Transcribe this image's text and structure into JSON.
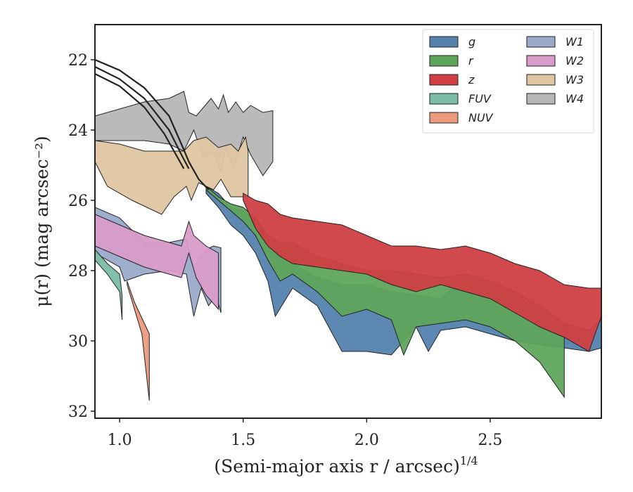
{
  "chart_data": {
    "type": "area",
    "title": "",
    "xlabel": "(Semi-major axis r / arcsec)",
    "xlabel_superscript": "1/4",
    "ylabel": "μ(r) (mag arcsec⁻²)",
    "xlim": [
      0.9,
      2.95
    ],
    "ylim": [
      32.2,
      21.0
    ],
    "y_inverted": true,
    "x_ticks": [
      1.0,
      1.5,
      2.0,
      2.5
    ],
    "x_tick_labels": [
      "1.0",
      "1.5",
      "2.0",
      "2.5"
    ],
    "y_ticks": [
      22,
      24,
      26,
      28,
      30,
      32
    ],
    "y_tick_labels": [
      "22",
      "24",
      "26",
      "28",
      "30",
      "32"
    ],
    "grid": false,
    "legend": {
      "placement": "top-right",
      "columns": 2,
      "entries": [
        "g",
        "r",
        "z",
        "FUV",
        "NUV",
        "W1",
        "W2",
        "W3",
        "W4"
      ]
    },
    "series": [
      {
        "name": "W4",
        "color": "#b6b6b6",
        "upper": [
          [
            0.9,
            23.6
          ],
          [
            1.1,
            23.2
          ],
          [
            1.2,
            23.1
          ],
          [
            1.26,
            22.9
          ],
          [
            1.28,
            23.5
          ],
          [
            1.31,
            23.6
          ],
          [
            1.37,
            23.1
          ],
          [
            1.4,
            23.4
          ],
          [
            1.42,
            23.0
          ],
          [
            1.44,
            23.5
          ],
          [
            1.47,
            23.2
          ],
          [
            1.5,
            23.5
          ],
          [
            1.53,
            23.3
          ],
          [
            1.58,
            23.5
          ],
          [
            1.62,
            23.45
          ]
        ],
        "lower": [
          [
            0.9,
            24.3
          ],
          [
            1.1,
            24.3
          ],
          [
            1.2,
            24.4
          ],
          [
            1.26,
            24.6
          ],
          [
            1.3,
            24.0
          ],
          [
            1.34,
            24.8
          ],
          [
            1.38,
            24.6
          ],
          [
            1.41,
            25.2
          ],
          [
            1.43,
            24.5
          ],
          [
            1.46,
            25.1
          ],
          [
            1.5,
            24.2
          ],
          [
            1.53,
            24.7
          ],
          [
            1.58,
            25.3
          ],
          [
            1.62,
            24.9
          ]
        ]
      },
      {
        "name": "W3",
        "color": "#dfc6a3",
        "upper": [
          [
            0.9,
            24.3
          ],
          [
            1.0,
            24.4
          ],
          [
            1.1,
            24.6
          ],
          [
            1.2,
            24.6
          ],
          [
            1.26,
            24.6
          ],
          [
            1.3,
            24.3
          ],
          [
            1.35,
            24.2
          ],
          [
            1.4,
            24.5
          ],
          [
            1.45,
            24.4
          ],
          [
            1.48,
            24.6
          ],
          [
            1.51,
            24.2
          ],
          [
            1.52,
            24.6
          ]
        ],
        "lower": [
          [
            0.9,
            24.9
          ],
          [
            0.95,
            25.6
          ],
          [
            1.05,
            26.0
          ],
          [
            1.17,
            26.4
          ],
          [
            1.22,
            25.9
          ],
          [
            1.27,
            25.6
          ],
          [
            1.29,
            26.0
          ],
          [
            1.32,
            25.5
          ],
          [
            1.38,
            25.7
          ],
          [
            1.41,
            25.4
          ],
          [
            1.45,
            25.9
          ],
          [
            1.52,
            25.9
          ]
        ]
      },
      {
        "name": "g",
        "color": "#5482ad",
        "upper": [
          [
            1.35,
            25.6
          ],
          [
            1.4,
            25.8
          ],
          [
            1.45,
            26.2
          ],
          [
            1.5,
            26.3
          ],
          [
            1.55,
            26.6
          ],
          [
            1.6,
            27.1
          ],
          [
            1.65,
            27.6
          ],
          [
            1.7,
            27.8
          ],
          [
            1.8,
            28.2
          ],
          [
            1.9,
            28.4
          ],
          [
            2.0,
            28.4
          ],
          [
            2.1,
            28.6
          ],
          [
            2.2,
            28.7
          ],
          [
            2.3,
            28.8
          ],
          [
            2.35,
            28.5
          ],
          [
            2.4,
            28.6
          ],
          [
            2.5,
            28.8
          ],
          [
            2.6,
            28.8
          ],
          [
            2.7,
            29.3
          ],
          [
            2.8,
            29.5
          ],
          [
            2.9,
            29.7
          ],
          [
            2.95,
            29.4
          ]
        ],
        "lower": [
          [
            1.35,
            25.8
          ],
          [
            1.4,
            26.2
          ],
          [
            1.45,
            26.7
          ],
          [
            1.5,
            27.0
          ],
          [
            1.55,
            27.5
          ],
          [
            1.6,
            28.3
          ],
          [
            1.63,
            29.3
          ],
          [
            1.7,
            28.5
          ],
          [
            1.8,
            29.0
          ],
          [
            1.9,
            30.3
          ],
          [
            2.0,
            30.3
          ],
          [
            2.1,
            30.4
          ],
          [
            2.2,
            29.6
          ],
          [
            2.25,
            30.3
          ],
          [
            2.3,
            29.7
          ],
          [
            2.4,
            29.6
          ],
          [
            2.5,
            29.8
          ],
          [
            2.6,
            30.0
          ],
          [
            2.7,
            30.1
          ],
          [
            2.8,
            30.2
          ],
          [
            2.9,
            30.3
          ],
          [
            2.95,
            30.2
          ]
        ]
      },
      {
        "name": "r",
        "color": "#5ea55c",
        "upper": [
          [
            1.35,
            25.6
          ],
          [
            1.4,
            25.9
          ],
          [
            1.45,
            26.1
          ],
          [
            1.5,
            26.2
          ],
          [
            1.55,
            26.5
          ],
          [
            1.6,
            27.0
          ],
          [
            1.65,
            27.2
          ],
          [
            1.7,
            27.2
          ],
          [
            1.8,
            27.6
          ],
          [
            1.9,
            27.8
          ],
          [
            2.0,
            28.0
          ],
          [
            2.1,
            28.0
          ],
          [
            2.2,
            28.1
          ],
          [
            2.3,
            28.2
          ],
          [
            2.4,
            28.1
          ],
          [
            2.5,
            28.3
          ],
          [
            2.6,
            28.6
          ],
          [
            2.7,
            29.0
          ],
          [
            2.8,
            29.5
          ]
        ],
        "lower": [
          [
            1.35,
            25.7
          ],
          [
            1.4,
            26.0
          ],
          [
            1.45,
            26.3
          ],
          [
            1.5,
            26.6
          ],
          [
            1.55,
            27.0
          ],
          [
            1.6,
            27.7
          ],
          [
            1.65,
            28.3
          ],
          [
            1.7,
            28.1
          ],
          [
            1.8,
            28.6
          ],
          [
            1.9,
            29.3
          ],
          [
            2.0,
            29.1
          ],
          [
            2.1,
            29.4
          ],
          [
            2.15,
            30.4
          ],
          [
            2.2,
            29.6
          ],
          [
            2.3,
            29.5
          ],
          [
            2.4,
            29.4
          ],
          [
            2.5,
            29.6
          ],
          [
            2.6,
            30.0
          ],
          [
            2.7,
            30.6
          ],
          [
            2.8,
            31.6
          ]
        ]
      },
      {
        "name": "z",
        "color": "#cf3f43",
        "upper": [
          [
            1.5,
            25.8
          ],
          [
            1.55,
            26.0
          ],
          [
            1.6,
            26.1
          ],
          [
            1.65,
            26.4
          ],
          [
            1.7,
            26.5
          ],
          [
            1.8,
            26.6
          ],
          [
            1.9,
            26.7
          ],
          [
            2.0,
            27.0
          ],
          [
            2.1,
            27.3
          ],
          [
            2.2,
            27.3
          ],
          [
            2.3,
            27.4
          ],
          [
            2.4,
            27.3
          ],
          [
            2.5,
            27.5
          ],
          [
            2.6,
            27.8
          ],
          [
            2.7,
            28.0
          ],
          [
            2.8,
            28.4
          ],
          [
            2.9,
            28.5
          ],
          [
            2.95,
            28.5
          ]
        ],
        "lower": [
          [
            1.5,
            26.0
          ],
          [
            1.55,
            26.8
          ],
          [
            1.6,
            27.3
          ],
          [
            1.65,
            27.6
          ],
          [
            1.7,
            27.8
          ],
          [
            1.8,
            27.9
          ],
          [
            1.9,
            28.0
          ],
          [
            2.0,
            28.1
          ],
          [
            2.1,
            28.4
          ],
          [
            2.2,
            28.6
          ],
          [
            2.3,
            28.4
          ],
          [
            2.4,
            28.6
          ],
          [
            2.5,
            28.8
          ],
          [
            2.6,
            29.2
          ],
          [
            2.7,
            29.6
          ],
          [
            2.8,
            29.9
          ],
          [
            2.9,
            30.3
          ],
          [
            2.95,
            29.3
          ]
        ]
      },
      {
        "name": "W1",
        "color": "#9aaac9",
        "upper": [
          [
            0.9,
            26.2
          ],
          [
            1.0,
            26.5
          ],
          [
            1.1,
            27.2
          ],
          [
            1.2,
            27.2
          ],
          [
            1.27,
            27.1
          ],
          [
            1.3,
            27.9
          ],
          [
            1.35,
            27.4
          ],
          [
            1.38,
            27.3
          ],
          [
            1.41,
            27.35
          ]
        ],
        "lower": [
          [
            0.9,
            27.5
          ],
          [
            1.0,
            27.9
          ],
          [
            1.02,
            28.3
          ],
          [
            1.1,
            28.1
          ],
          [
            1.2,
            28.0
          ],
          [
            1.27,
            28.1
          ],
          [
            1.3,
            29.3
          ],
          [
            1.33,
            28.5
          ],
          [
            1.36,
            29.0
          ],
          [
            1.39,
            28.7
          ],
          [
            1.41,
            29.2
          ]
        ]
      },
      {
        "name": "W2",
        "color": "#d99bc9",
        "upper": [
          [
            0.9,
            26.4
          ],
          [
            1.0,
            26.7
          ],
          [
            1.1,
            27.0
          ],
          [
            1.2,
            27.2
          ],
          [
            1.25,
            27.3
          ],
          [
            1.28,
            26.6
          ],
          [
            1.3,
            27.0
          ],
          [
            1.35,
            27.3
          ],
          [
            1.4,
            27.5
          ]
        ],
        "lower": [
          [
            0.9,
            27.3
          ],
          [
            1.0,
            27.6
          ],
          [
            1.1,
            27.9
          ],
          [
            1.2,
            28.1
          ],
          [
            1.25,
            28.2
          ],
          [
            1.28,
            27.5
          ],
          [
            1.31,
            28.2
          ],
          [
            1.35,
            28.7
          ],
          [
            1.4,
            29.1
          ]
        ]
      },
      {
        "name": "FUV",
        "color": "#7bbca6",
        "upper": [
          [
            0.9,
            27.4
          ],
          [
            0.95,
            27.8
          ],
          [
            1.0,
            28.1
          ],
          [
            1.01,
            28.7
          ]
        ],
        "lower": [
          [
            0.9,
            27.7
          ],
          [
            0.95,
            28.1
          ],
          [
            1.0,
            28.6
          ],
          [
            1.01,
            29.4
          ]
        ]
      },
      {
        "name": "NUV",
        "color": "#eb9a7c",
        "upper": [
          [
            1.03,
            28.3
          ],
          [
            1.06,
            28.9
          ],
          [
            1.1,
            29.5
          ],
          [
            1.12,
            29.8
          ]
        ],
        "lower": [
          [
            1.03,
            28.4
          ],
          [
            1.06,
            29.1
          ],
          [
            1.09,
            29.8
          ],
          [
            1.12,
            31.7
          ]
        ]
      }
    ],
    "profile_curves": [
      {
        "color": "#222222",
        "points": [
          [
            0.9,
            22.0
          ],
          [
            1.0,
            22.3
          ],
          [
            1.1,
            22.8
          ],
          [
            1.2,
            23.6
          ],
          [
            1.25,
            24.4
          ],
          [
            1.28,
            24.9
          ],
          [
            1.32,
            25.4
          ],
          [
            1.36,
            25.7
          ]
        ]
      },
      {
        "color": "#222222",
        "points": [
          [
            0.9,
            22.2
          ],
          [
            1.0,
            22.55
          ],
          [
            1.1,
            23.1
          ],
          [
            1.2,
            24.0
          ],
          [
            1.25,
            24.7
          ],
          [
            1.28,
            25.1
          ]
        ]
      },
      {
        "color": "#222222",
        "points": [
          [
            0.9,
            22.4
          ],
          [
            1.0,
            22.75
          ],
          [
            1.1,
            23.35
          ],
          [
            1.18,
            24.1
          ],
          [
            1.22,
            24.6
          ],
          [
            1.26,
            25.1
          ]
        ]
      }
    ]
  }
}
